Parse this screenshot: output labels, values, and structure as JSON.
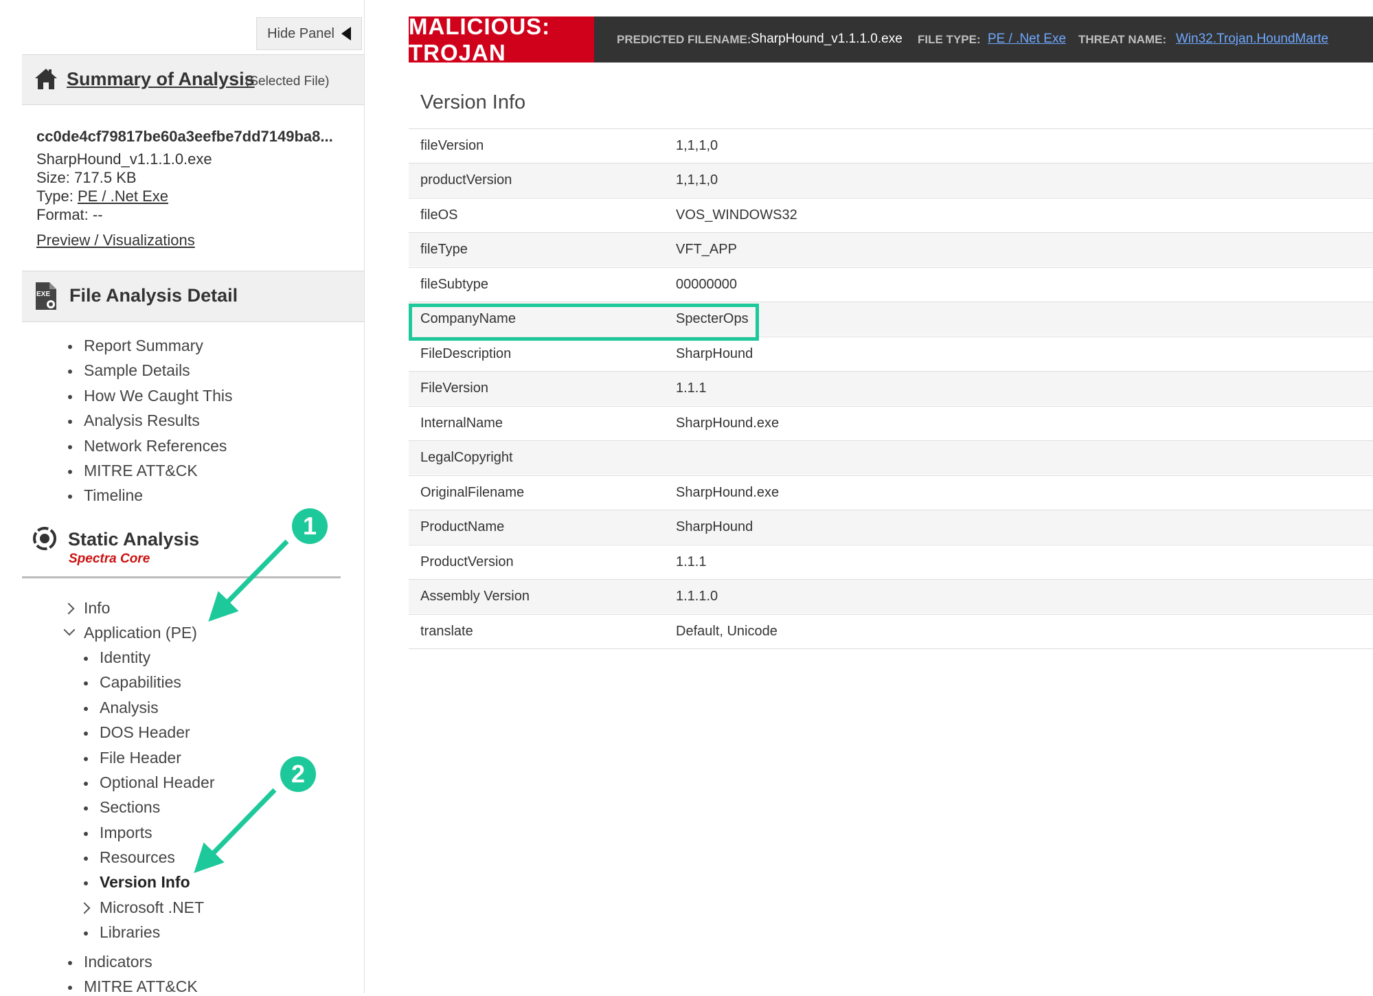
{
  "left_panel": {
    "hide_panel_label": "Hide Panel",
    "summary": {
      "title": "Summary of Analysis",
      "subtitle": "(Selected File)",
      "hash": "cc0de4cf79817be60a3eefbe7dd7149ba8...",
      "filename": "SharpHound_v1.1.1.0.exe",
      "size_label": "Size:",
      "size_value": "717.5 KB",
      "type_label": "Type:",
      "type_value": "PE / .Net Exe",
      "format_label": "Format:",
      "format_value": "--",
      "preview_link": "Preview / Visualizations"
    },
    "file_analysis": {
      "title": "File Analysis Detail",
      "exe_icon_text": "EXE",
      "items": [
        "Report Summary",
        "Sample Details",
        "How We Caught This",
        "Analysis Results",
        "Network References",
        "MITRE ATT&CK",
        "Timeline"
      ]
    },
    "static_analysis": {
      "title": "Static Analysis",
      "subtitle": "Spectra Core",
      "info_label": "Info",
      "application_label": "Application (PE)",
      "pe_items": [
        "Identity",
        "Capabilities",
        "Analysis",
        "DOS Header",
        "File Header",
        "Optional Header",
        "Sections",
        "Imports",
        "Resources"
      ],
      "version_info_label": "Version Info",
      "dotnet_label": "Microsoft .NET",
      "libraries_label": "Libraries"
    },
    "bottom_items": [
      "Indicators",
      "MITRE ATT&CK"
    ]
  },
  "banner": {
    "verdict": "MALICIOUS: TROJAN",
    "predicted_filename_label": "PREDICTED FILENAME:",
    "predicted_filename_value": "SharpHound_v1.1.1.0.exe",
    "file_type_label": "FILE TYPE:",
    "file_type_value": "PE / .Net Exe",
    "threat_name_label": "THREAT NAME:",
    "threat_name_value": "Win32.Trojan.HoundMarte"
  },
  "version_info": {
    "title": "Version Info",
    "rows": [
      {
        "key": "fileVersion",
        "value": "1,1,1,0"
      },
      {
        "key": "productVersion",
        "value": "1,1,1,0"
      },
      {
        "key": "fileOS",
        "value": "VOS_WINDOWS32"
      },
      {
        "key": "fileType",
        "value": "VFT_APP"
      },
      {
        "key": "fileSubtype",
        "value": "00000000"
      },
      {
        "key": "CompanyName",
        "value": "SpecterOps"
      },
      {
        "key": "FileDescription",
        "value": "SharpHound"
      },
      {
        "key": "FileVersion",
        "value": "1.1.1"
      },
      {
        "key": "InternalName",
        "value": "SharpHound.exe"
      },
      {
        "key": "LegalCopyright",
        "value": ""
      },
      {
        "key": "OriginalFilename",
        "value": "SharpHound.exe"
      },
      {
        "key": "ProductName",
        "value": "SharpHound"
      },
      {
        "key": "ProductVersion",
        "value": "1.1.1"
      },
      {
        "key": "Assembly Version",
        "value": "1.1.1.0"
      },
      {
        "key": "translate",
        "value": "Default, Unicode"
      }
    ]
  },
  "annotations": {
    "step_1": "1",
    "step_2": "2",
    "accent_color": "#1dc99a"
  },
  "colors": {
    "malicious_red": "#d0021b",
    "banner_dark": "#333333",
    "spectra_red": "#cc1111"
  }
}
